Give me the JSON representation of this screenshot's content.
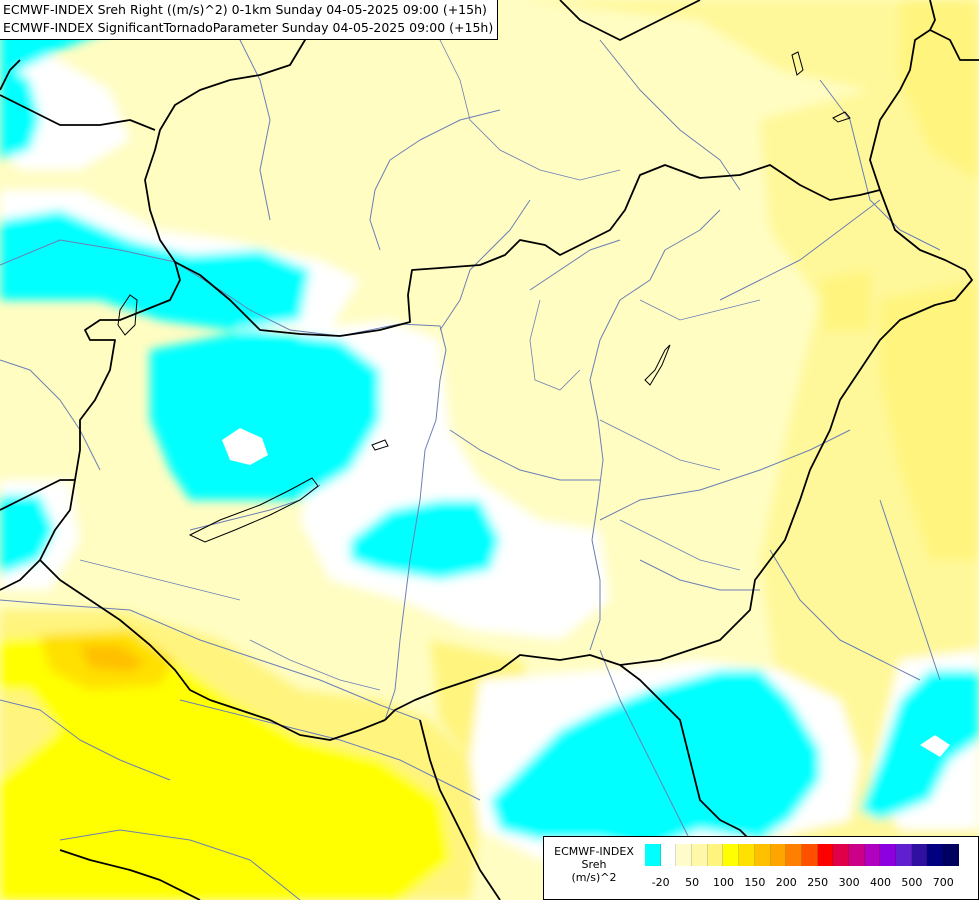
{
  "title": {
    "line1": "ECMWF-INDEX Sreh Right ((m/s)^2) 0-1km Sunday 04-05-2025 09:00 (+15h)",
    "line2": "ECMWF-INDEX SignificantTornadoParameter Sunday 04-05-2025 09:00 (+15h)"
  },
  "legend": {
    "title_lines": [
      "ECMWF-INDEX",
      "Sreh",
      "(m/s)^2"
    ],
    "colors": [
      "#00ffff",
      "#ffffff",
      "#fffccc",
      "#fff8a8",
      "#fff47e",
      "#ffff00",
      "#ffe000",
      "#ffc000",
      "#ffa500",
      "#ff8000",
      "#ff5000",
      "#ff0000",
      "#e0004a",
      "#cc0088",
      "#b000c0",
      "#8c00e0",
      "#6020d0",
      "#3010a0",
      "#000080",
      "#00005e"
    ],
    "ticks": [
      "-20",
      "50",
      "100",
      "150",
      "200",
      "250",
      "300",
      "400",
      "500",
      "700"
    ]
  }
}
